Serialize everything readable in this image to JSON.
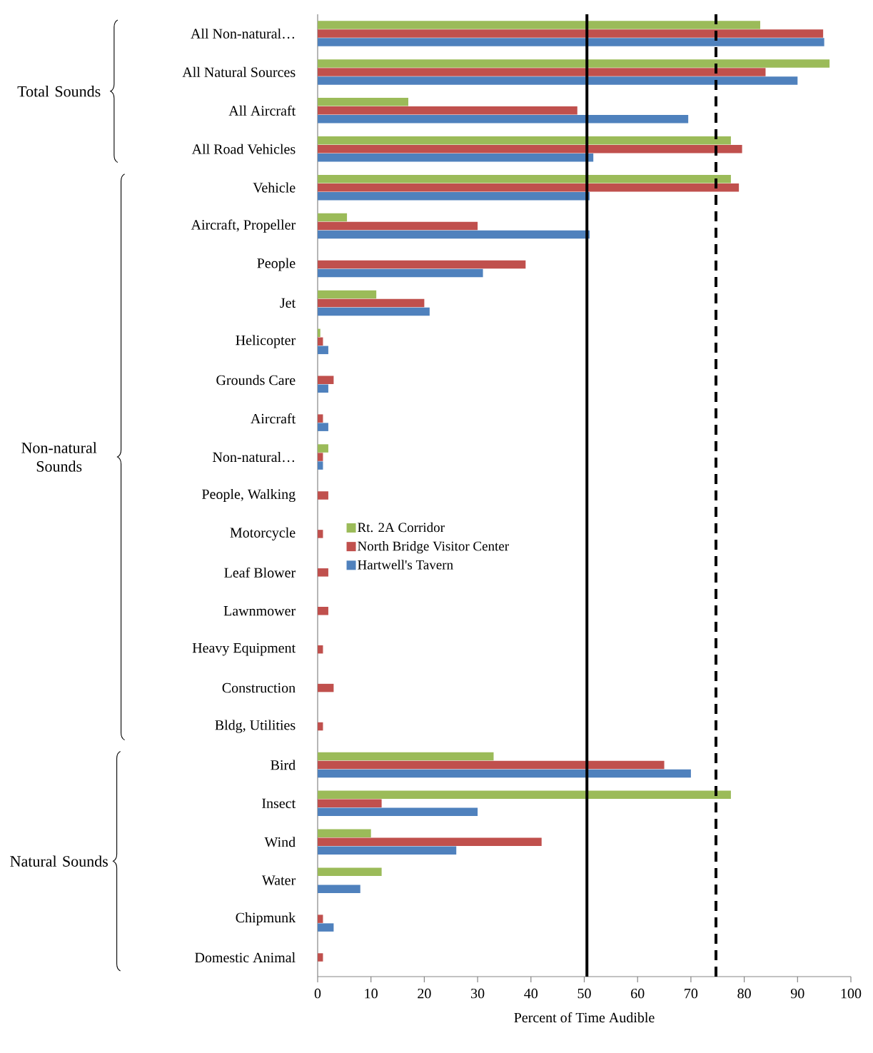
{
  "chart_data": {
    "type": "bar",
    "orientation": "horizontal",
    "xlabel": "Percent of Time Audible",
    "categories": [
      "All Non-natural…",
      "All Natural Sources",
      "All Aircraft",
      "All Road Vehicles",
      "Vehicle",
      "Aircraft, Propeller",
      "People",
      "Jet",
      "Helicopter",
      "Grounds Care",
      "Aircraft",
      "Non-natural…",
      "People, Walking",
      "Motorcycle",
      "Leaf Blower",
      "Lawnmower",
      "Heavy Equipment",
      "Construction",
      "Bldg, Utilities",
      "Bird",
      "Insect",
      "Wind",
      "Water",
      "Chipmunk",
      "Domestic Animal"
    ],
    "series": [
      {
        "name": "Rt. 2A Corridor",
        "color": "#9bbb59",
        "values": [
          83,
          96,
          17,
          77.5,
          77.5,
          5.5,
          null,
          11,
          0.5,
          null,
          null,
          2,
          null,
          null,
          null,
          null,
          null,
          null,
          null,
          33,
          77.5,
          10,
          12,
          null,
          null
        ]
      },
      {
        "name": "North Bridge Visitor Center",
        "color": "#c0504d",
        "values": [
          94.8,
          84,
          48.7,
          79.6,
          79,
          30,
          39,
          20,
          1,
          3,
          1,
          1,
          2,
          1,
          2,
          2,
          1,
          3,
          1,
          65,
          12,
          42,
          null,
          1,
          1
        ]
      },
      {
        "name": "Hartwell's Tavern",
        "color": "#4f81bd",
        "values": [
          95,
          90,
          69.5,
          51.7,
          51,
          51,
          31,
          21,
          2,
          2,
          2,
          1,
          null,
          null,
          null,
          null,
          null,
          null,
          null,
          70,
          30,
          26,
          8,
          3,
          null
        ]
      }
    ],
    "xlim": [
      0,
      100
    ],
    "xticks": [
      0,
      10,
      20,
      30,
      40,
      50,
      60,
      70,
      80,
      90,
      100
    ],
    "ref_lines": [
      {
        "axis": "x",
        "value": 50.5,
        "color": "#000000",
        "line_style": "solid"
      },
      {
        "axis": "x",
        "value": 74.7,
        "color": "#000000",
        "line_style": "dashed"
      }
    ],
    "annotations": [
      "Total Sounds",
      "Non-natural Sounds",
      "Natural Sounds"
    ],
    "legend": "left",
    "grid": false
  }
}
